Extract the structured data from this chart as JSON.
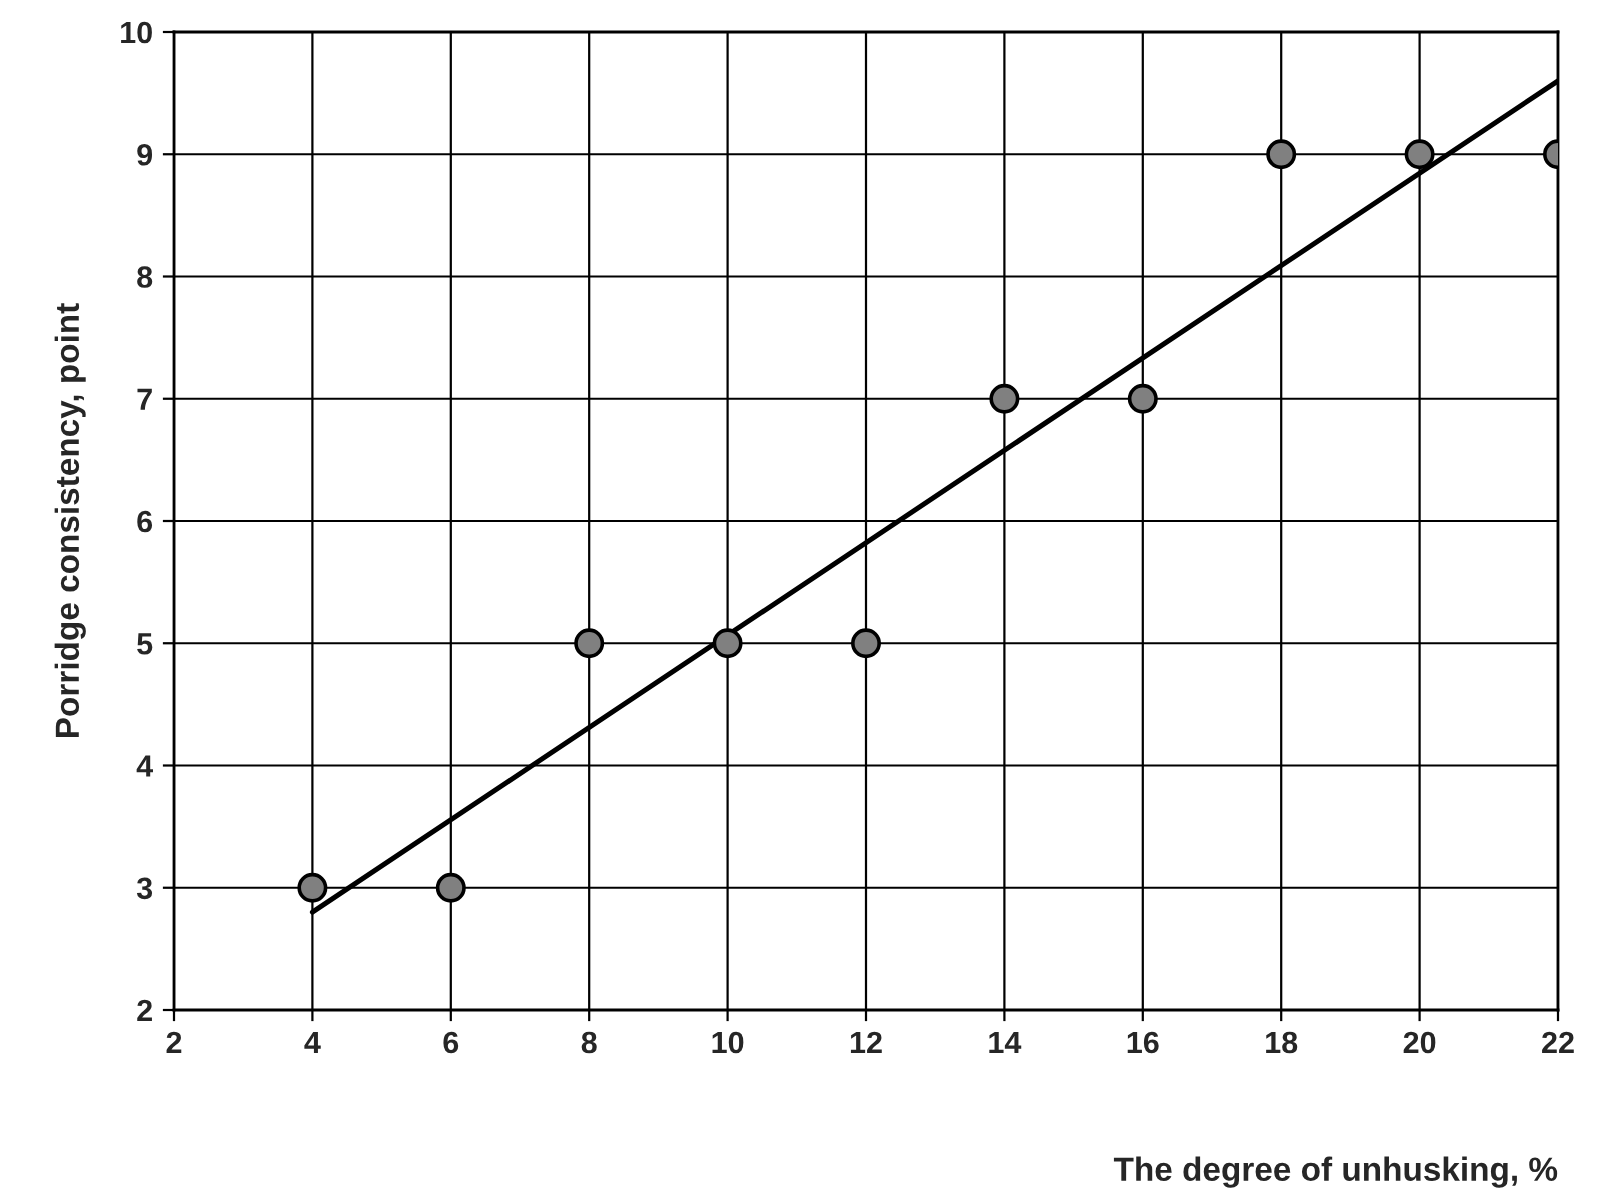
{
  "chart_data": {
    "type": "scatter",
    "xlabel": "The degree of unhusking, %",
    "ylabel": "Porridge consistency, point",
    "series": [
      {
        "color": "#808080",
        "marker": "circle",
        "x": [
          4,
          6,
          8,
          10,
          12,
          14,
          16,
          18,
          20,
          22
        ],
        "values": [
          3,
          3,
          5,
          5,
          5,
          7,
          7,
          9,
          9,
          9
        ]
      },
      {
        "type": "line",
        "color": "#000000",
        "line_style": "solid",
        "x": [
          4,
          22
        ],
        "values": [
          2.8,
          9.6
        ]
      }
    ],
    "xlim": [
      2,
      22
    ],
    "xticks": [
      2,
      4,
      6,
      8,
      10,
      12,
      14,
      16,
      18,
      20,
      22
    ],
    "ylim": [
      2,
      10
    ],
    "yticks": [
      2,
      3,
      4,
      5,
      6,
      7,
      8,
      9,
      10
    ],
    "grid": true
  }
}
